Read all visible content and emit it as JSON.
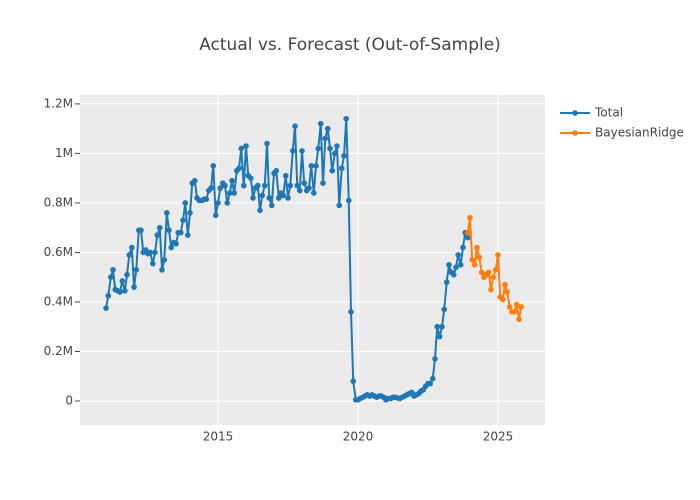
{
  "chart_data": {
    "type": "line",
    "title": "Actual vs. Forecast (Out-of-Sample)",
    "xlim": [
      2010.07,
      2026.68
    ],
    "xticks": [
      2015,
      2020,
      2025
    ],
    "ylim": [
      -97000,
      1236000
    ],
    "yticks": [
      {
        "value": 0,
        "label": "0"
      },
      {
        "value": 200000,
        "label": "0.2M"
      },
      {
        "value": 400000,
        "label": "0.4M"
      },
      {
        "value": 600000,
        "label": "0.6M"
      },
      {
        "value": 800000,
        "label": "0.8M"
      },
      {
        "value": 1000000,
        "label": "1M"
      },
      {
        "value": 1200000,
        "label": "1.2M"
      }
    ],
    "grid": true,
    "legend": "outside-right",
    "series": [
      {
        "name": "Total",
        "color": "#1f77b4",
        "x": [
          2011.0,
          2011.08,
          2011.17,
          2011.25,
          2011.33,
          2011.42,
          2011.5,
          2011.58,
          2011.67,
          2011.75,
          2011.83,
          2011.92,
          2012.0,
          2012.08,
          2012.17,
          2012.25,
          2012.33,
          2012.42,
          2012.5,
          2012.58,
          2012.67,
          2012.75,
          2012.83,
          2012.92,
          2013.0,
          2013.08,
          2013.17,
          2013.25,
          2013.33,
          2013.42,
          2013.5,
          2013.58,
          2013.67,
          2013.75,
          2013.83,
          2013.92,
          2014.0,
          2014.08,
          2014.17,
          2014.25,
          2014.33,
          2014.42,
          2014.5,
          2014.58,
          2014.67,
          2014.75,
          2014.83,
          2014.92,
          2015.0,
          2015.08,
          2015.17,
          2015.25,
          2015.33,
          2015.42,
          2015.5,
          2015.58,
          2015.67,
          2015.75,
          2015.83,
          2015.92,
          2016.0,
          2016.08,
          2016.17,
          2016.25,
          2016.33,
          2016.42,
          2016.5,
          2016.58,
          2016.67,
          2016.75,
          2016.83,
          2016.92,
          2017.0,
          2017.08,
          2017.17,
          2017.25,
          2017.33,
          2017.42,
          2017.5,
          2017.58,
          2017.67,
          2017.75,
          2017.83,
          2017.92,
          2018.0,
          2018.08,
          2018.17,
          2018.25,
          2018.33,
          2018.42,
          2018.5,
          2018.58,
          2018.67,
          2018.75,
          2018.83,
          2018.92,
          2019.0,
          2019.08,
          2019.17,
          2019.25,
          2019.33,
          2019.42,
          2019.5,
          2019.58,
          2019.67,
          2019.75,
          2019.83,
          2019.92,
          2020.0,
          2020.08,
          2020.17,
          2020.25,
          2020.33,
          2020.42,
          2020.5,
          2020.58,
          2020.67,
          2020.75,
          2020.83,
          2020.92,
          2021.0,
          2021.08,
          2021.17,
          2021.25,
          2021.33,
          2021.42,
          2021.5,
          2021.58,
          2021.67,
          2021.75,
          2021.83,
          2021.92,
          2022.0,
          2022.08,
          2022.17,
          2022.25,
          2022.33,
          2022.42,
          2022.5,
          2022.58,
          2022.67,
          2022.75,
          2022.83,
          2022.92,
          2023.0,
          2023.08,
          2023.17,
          2023.25,
          2023.33,
          2023.42,
          2023.5,
          2023.58,
          2023.67,
          2023.75,
          2023.83,
          2023.92
        ],
        "values": [
          375000,
          425000,
          500000,
          530000,
          450000,
          445000,
          440000,
          485000,
          445000,
          510000,
          590000,
          620000,
          460000,
          530000,
          690000,
          690000,
          600000,
          610000,
          595000,
          600000,
          555000,
          600000,
          670000,
          700000,
          530000,
          570000,
          760000,
          690000,
          620000,
          640000,
          635000,
          680000,
          680000,
          730000,
          800000,
          670000,
          760000,
          880000,
          890000,
          820000,
          810000,
          810000,
          815000,
          815000,
          850000,
          860000,
          950000,
          750000,
          800000,
          860000,
          880000,
          870000,
          800000,
          840000,
          890000,
          840000,
          930000,
          940000,
          1020000,
          870000,
          1030000,
          910000,
          900000,
          820000,
          860000,
          870000,
          770000,
          830000,
          870000,
          1040000,
          820000,
          790000,
          920000,
          930000,
          820000,
          840000,
          830000,
          910000,
          820000,
          870000,
          1010000,
          1110000,
          870000,
          850000,
          1010000,
          880000,
          850000,
          860000,
          950000,
          840000,
          950000,
          1020000,
          1120000,
          880000,
          1060000,
          1100000,
          1020000,
          930000,
          1000000,
          1030000,
          790000,
          940000,
          990000,
          1140000,
          810000,
          360000,
          80000,
          5000,
          5000,
          10000,
          15000,
          20000,
          25000,
          20000,
          25000,
          20000,
          15000,
          20000,
          20000,
          15000,
          5000,
          10000,
          10000,
          15000,
          15000,
          12000,
          10000,
          15000,
          20000,
          25000,
          30000,
          35000,
          20000,
          25000,
          30000,
          40000,
          45000,
          60000,
          70000,
          70000,
          90000,
          170000,
          300000,
          260000,
          300000,
          370000,
          480000,
          550000,
          520000,
          510000,
          540000,
          590000,
          550000,
          620000,
          680000,
          660000
        ]
      },
      {
        "name": "BayesianRidge",
        "color": "#ff7f0e",
        "x": [
          2023.92,
          2024.0,
          2024.08,
          2024.17,
          2024.25,
          2024.33,
          2024.42,
          2024.5,
          2024.58,
          2024.67,
          2024.75,
          2024.83,
          2024.92,
          2025.0,
          2025.08,
          2025.17,
          2025.25,
          2025.33,
          2025.42,
          2025.5,
          2025.58,
          2025.67,
          2025.75,
          2025.83
        ],
        "values": [
          680000,
          740000,
          570000,
          550000,
          620000,
          580000,
          520000,
          500000,
          510000,
          520000,
          450000,
          500000,
          530000,
          590000,
          420000,
          410000,
          470000,
          440000,
          380000,
          360000,
          360000,
          390000,
          330000,
          380000
        ]
      }
    ]
  }
}
